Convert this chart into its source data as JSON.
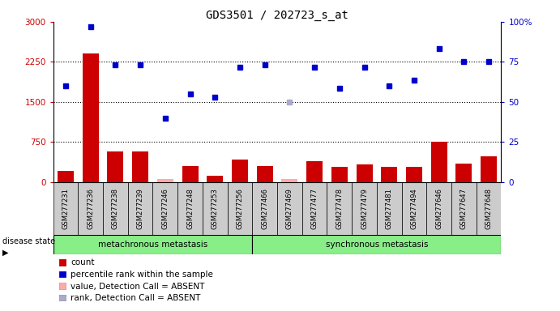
{
  "title": "GDS3501 / 202723_s_at",
  "samples": [
    "GSM277231",
    "GSM277236",
    "GSM277238",
    "GSM277239",
    "GSM277246",
    "GSM277248",
    "GSM277253",
    "GSM277256",
    "GSM277466",
    "GSM277469",
    "GSM277477",
    "GSM277478",
    "GSM277479",
    "GSM277481",
    "GSM277494",
    "GSM277646",
    "GSM277647",
    "GSM277648"
  ],
  "count_values": [
    200,
    2400,
    570,
    570,
    50,
    300,
    120,
    420,
    300,
    60,
    390,
    290,
    330,
    290,
    290,
    750,
    350,
    480
  ],
  "count_absent": [
    false,
    false,
    false,
    false,
    true,
    false,
    false,
    false,
    false,
    true,
    false,
    false,
    false,
    false,
    false,
    false,
    false,
    false
  ],
  "rank_values": [
    1800,
    2900,
    2200,
    2200,
    1200,
    1650,
    1580,
    2150,
    2200,
    1500,
    2150,
    1750,
    2150,
    1800,
    1900,
    2500,
    2250,
    2250
  ],
  "rank_absent": [
    false,
    false,
    false,
    false,
    false,
    false,
    false,
    false,
    false,
    true,
    false,
    false,
    false,
    false,
    false,
    false,
    false,
    false
  ],
  "metachronous_count": 8,
  "group1_label": "metachronous metastasis",
  "group2_label": "synchronous metastasis",
  "ylim_left": [
    0,
    3000
  ],
  "ylim_right": [
    0,
    100
  ],
  "yticks_left": [
    0,
    750,
    1500,
    2250,
    3000
  ],
  "yticks_right": [
    0,
    25,
    50,
    75,
    100
  ],
  "bar_color": "#cc0000",
  "bar_absent_color": "#ffaaaa",
  "dot_color": "#0000cc",
  "dot_absent_color": "#aaaacc",
  "tick_bg_color": "#cccccc",
  "group_bg_color": "#88ee88",
  "legend_items": [
    {
      "label": "count",
      "color": "#cc0000"
    },
    {
      "label": "percentile rank within the sample",
      "color": "#0000cc"
    },
    {
      "label": "value, Detection Call = ABSENT",
      "color": "#ffaaaa"
    },
    {
      "label": "rank, Detection Call = ABSENT",
      "color": "#aaaacc"
    }
  ]
}
